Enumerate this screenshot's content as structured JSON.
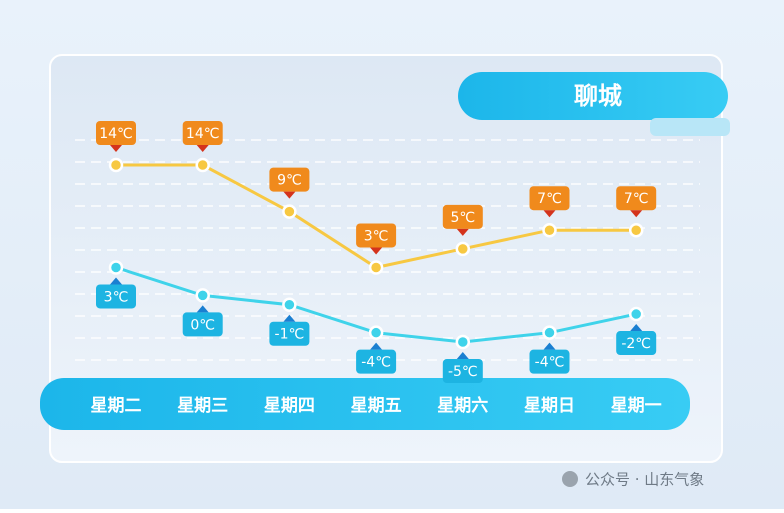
{
  "watermark": "公众号 · 山东气象",
  "chart_data": {
    "type": "line",
    "title": "聊城",
    "categories": [
      "星期二",
      "星期三",
      "星期四",
      "星期五",
      "星期六",
      "星期日",
      "星期一"
    ],
    "series": [
      {
        "color": "#f7c842",
        "label_color": "#f08a1c",
        "label_side": "above",
        "values": [
          14,
          14,
          9,
          3,
          5,
          7,
          7
        ],
        "value_labels": [
          "14℃",
          "14℃",
          "9℃",
          "3℃",
          "5℃",
          "7℃",
          "7℃"
        ]
      },
      {
        "color": "#3fd3ea",
        "label_color": "#1db4e2",
        "label_side": "below",
        "values": [
          3,
          0,
          -1,
          -4,
          -5,
          -4,
          -2
        ],
        "value_labels": [
          "3℃",
          "0℃",
          "-1℃",
          "-4℃",
          "-5℃",
          "-4℃",
          "-2℃"
        ]
      }
    ]
  }
}
